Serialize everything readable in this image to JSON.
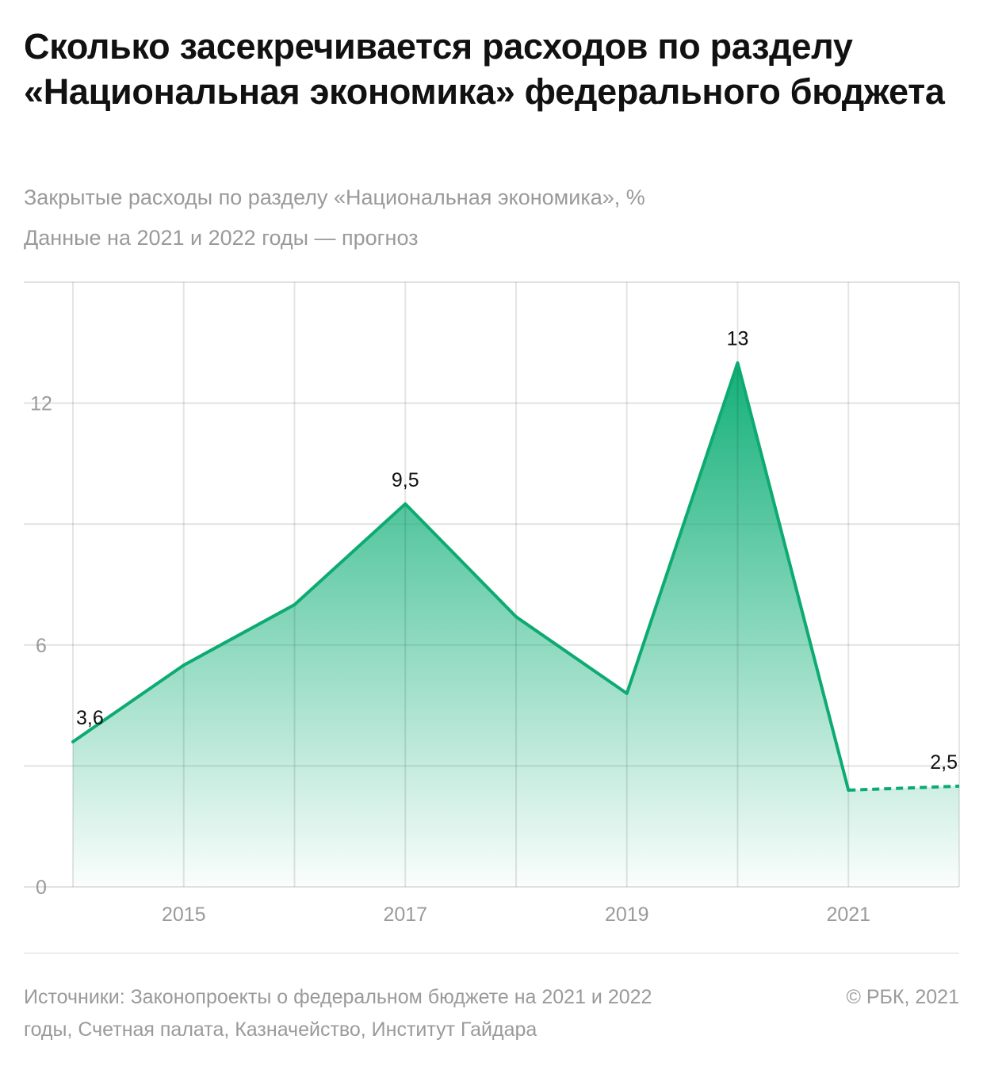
{
  "header": {
    "title": "Сколько засекречивается расходов по разделу «Национальная экономика» федерального бюджета",
    "subtitle_1": "Закрытые расходы по разделу «Национальная экономика», %",
    "subtitle_2": "Данные на 2021 и 2022 годы — прогноз"
  },
  "chart_data": {
    "type": "area",
    "x": [
      2014,
      2015,
      2016,
      2017,
      2018,
      2019,
      2020,
      2021,
      2022
    ],
    "series": [
      {
        "values": [
          3.6,
          5.5,
          7.0,
          9.5,
          6.7,
          4.8,
          13.0,
          2.4,
          2.5
        ]
      }
    ],
    "forecast_from": 2021,
    "x_tick_labels": [
      "2015",
      "2017",
      "2019",
      "2021"
    ],
    "x_tick_values": [
      2015,
      2017,
      2019,
      2021
    ],
    "y_tick_labels": [
      "0",
      "6",
      "12"
    ],
    "y_tick_values": [
      0,
      6,
      12
    ],
    "ylim": [
      0,
      15
    ],
    "y_gridlines": [
      0,
      3,
      6,
      9,
      12,
      15
    ],
    "data_labels": [
      {
        "x": 2014,
        "y": 3.6,
        "text": "3,6"
      },
      {
        "x": 2017,
        "y": 9.5,
        "text": "9,5"
      },
      {
        "x": 2020,
        "y": 13.0,
        "text": "13"
      },
      {
        "x": 2022,
        "y": 2.5,
        "text": "2,5"
      }
    ],
    "grid": true,
    "line_color": "#0daa72",
    "fill_color": "#13b07a"
  },
  "footer": {
    "source": "Источники: Законопроекты о федеральном бюджете на 2021 и 2022 годы, Счетная палата, Казначейство, Институт Гайдара",
    "copyright": "© РБК, 2021"
  }
}
